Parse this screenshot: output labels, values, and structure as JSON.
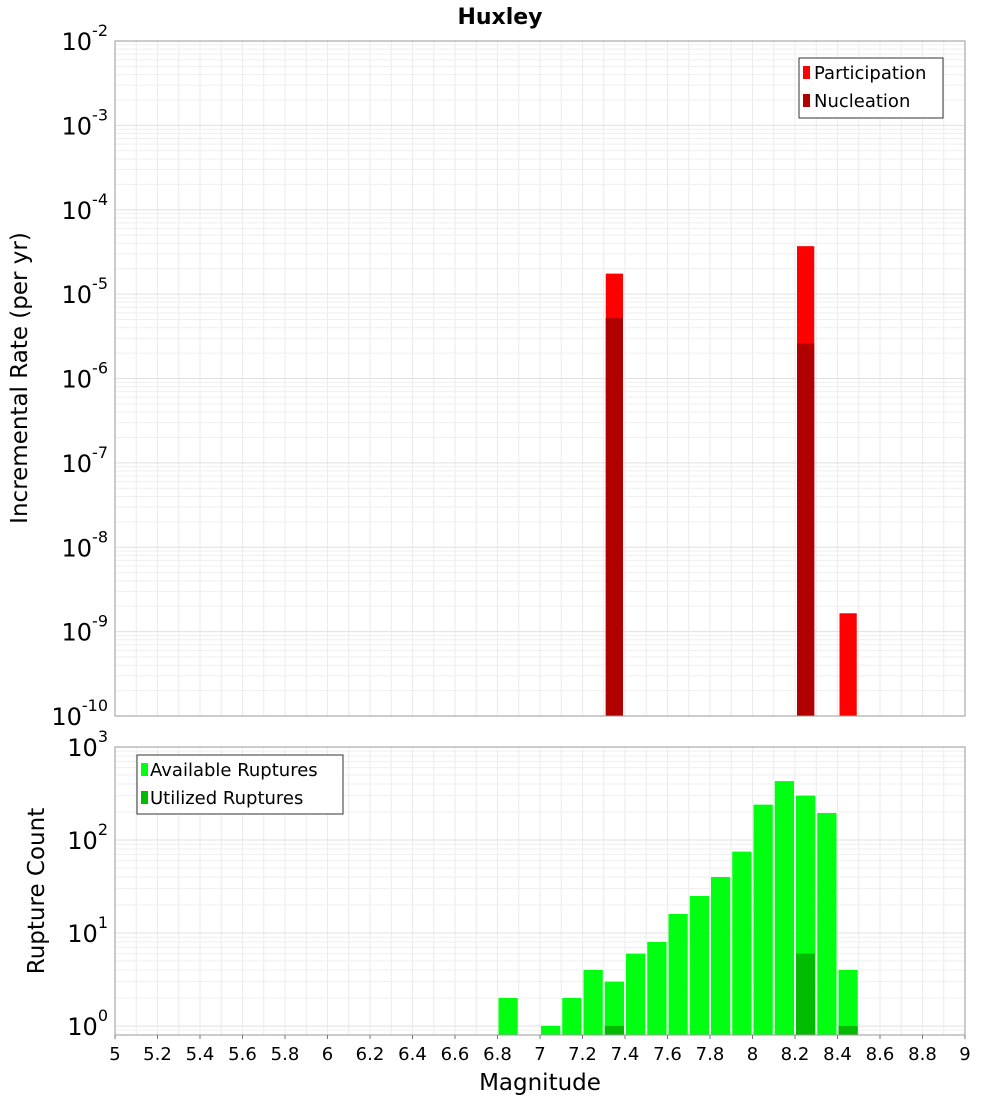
{
  "chart_data": [
    {
      "type": "bar",
      "title": "Huxley",
      "ylabel": "Incremental Rate (per yr)",
      "xlabel": "",
      "yscale": "log",
      "ylim": [
        1e-10,
        0.01
      ],
      "xlim": [
        5,
        9
      ],
      "bar_width": 0.1,
      "grid": true,
      "legend_position": "top-right",
      "y_ticks": [
        {
          "base": "10",
          "exp": "-2",
          "value": 0.01
        },
        {
          "base": "10",
          "exp": "-3",
          "value": 0.001
        },
        {
          "base": "10",
          "exp": "-4",
          "value": 0.0001
        },
        {
          "base": "10",
          "exp": "-5",
          "value": 1e-05
        },
        {
          "base": "10",
          "exp": "-6",
          "value": 1e-06
        },
        {
          "base": "10",
          "exp": "-7",
          "value": 1e-07
        },
        {
          "base": "10",
          "exp": "-8",
          "value": 1e-08
        },
        {
          "base": "10",
          "exp": "-9",
          "value": 1e-09
        },
        {
          "base": "10",
          "exp": "-10",
          "value": 1e-10
        }
      ],
      "series": [
        {
          "name": "Participation",
          "color": "#ff0000",
          "points": [
            {
              "x": 7.35,
              "y": 1.75e-05
            },
            {
              "x": 8.25,
              "y": 3.7e-05
            },
            {
              "x": 8.45,
              "y": 1.65e-09
            }
          ]
        },
        {
          "name": "Nucleation",
          "color": "#b00000",
          "points": [
            {
              "x": 7.35,
              "y": 5.2e-06
            },
            {
              "x": 8.25,
              "y": 2.6e-06
            }
          ]
        }
      ]
    },
    {
      "type": "bar",
      "title": "",
      "ylabel": "Rupture Count",
      "xlabel": "Magnitude",
      "yscale": "log",
      "ylim": [
        0.8,
        1000
      ],
      "xlim": [
        5,
        9
      ],
      "bar_width": 0.1,
      "grid": true,
      "legend_position": "top-left",
      "x_ticks": [
        "5",
        "5.2",
        "5.4",
        "5.6",
        "5.8",
        "6",
        "6.2",
        "6.4",
        "6.6",
        "6.8",
        "7",
        "7.2",
        "7.4",
        "7.6",
        "7.8",
        "8",
        "8.2",
        "8.4",
        "8.6",
        "8.8",
        "9"
      ],
      "y_ticks": [
        {
          "base": "10",
          "exp": "3",
          "value": 1000
        },
        {
          "base": "10",
          "exp": "2",
          "value": 100
        },
        {
          "base": "10",
          "exp": "1",
          "value": 10
        },
        {
          "base": "10",
          "exp": "0",
          "value": 1
        }
      ],
      "series": [
        {
          "name": "Available Ruptures",
          "color": "#00ff11",
          "points": [
            {
              "x": 6.85,
              "y": 2
            },
            {
              "x": 7.05,
              "y": 1
            },
            {
              "x": 7.15,
              "y": 2
            },
            {
              "x": 7.25,
              "y": 4
            },
            {
              "x": 7.35,
              "y": 3
            },
            {
              "x": 7.45,
              "y": 6
            },
            {
              "x": 7.55,
              "y": 8
            },
            {
              "x": 7.65,
              "y": 16
            },
            {
              "x": 7.75,
              "y": 25
            },
            {
              "x": 7.85,
              "y": 40
            },
            {
              "x": 7.95,
              "y": 75
            },
            {
              "x": 8.05,
              "y": 240
            },
            {
              "x": 8.15,
              "y": 430
            },
            {
              "x": 8.25,
              "y": 300
            },
            {
              "x": 8.35,
              "y": 195
            },
            {
              "x": 8.45,
              "y": 4
            }
          ]
        },
        {
          "name": "Utilized Ruptures",
          "color": "#00bb00",
          "points": [
            {
              "x": 7.35,
              "y": 1
            },
            {
              "x": 8.25,
              "y": 6
            },
            {
              "x": 8.45,
              "y": 1
            }
          ]
        }
      ]
    }
  ]
}
